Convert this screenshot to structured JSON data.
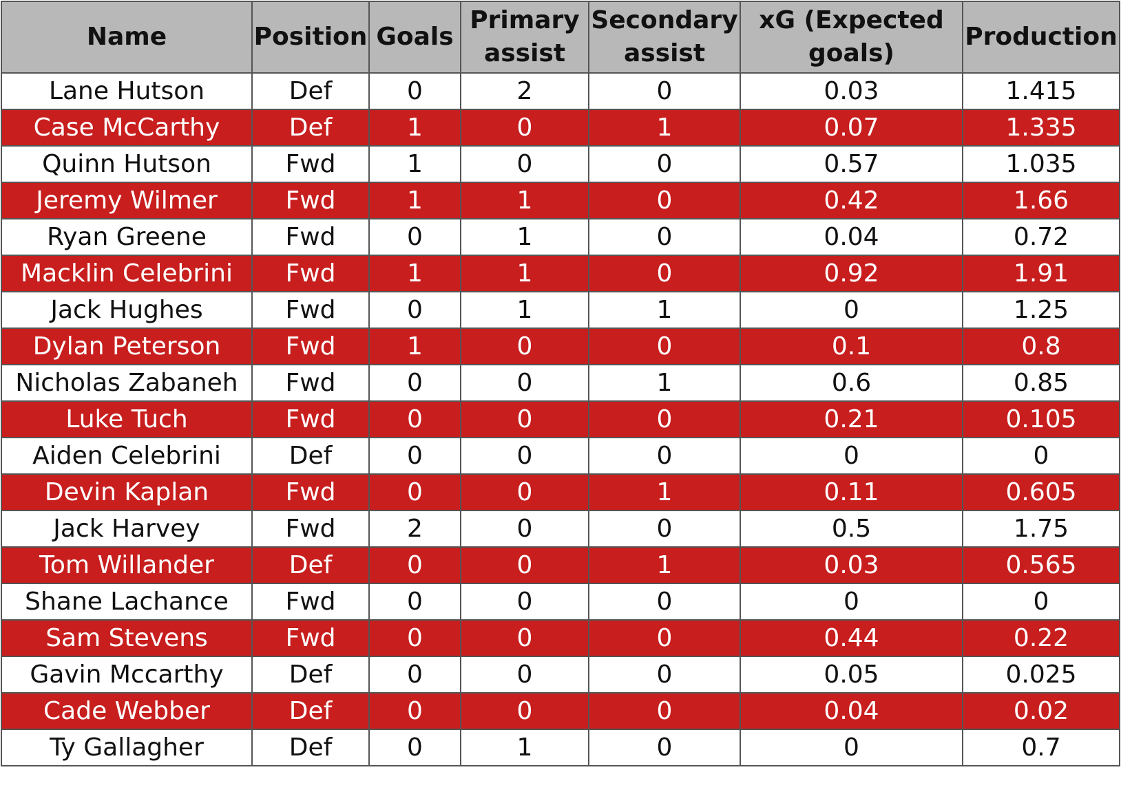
{
  "table": {
    "columns": [
      "Name",
      "Position",
      "Goals",
      "Primary assist",
      "Secondary assist",
      "xG (Expected goals)",
      "Production"
    ],
    "row_colors": {
      "light": "#ffffff",
      "accent": "#c81e1e",
      "header": "#b8b8b8"
    },
    "rows": [
      [
        "Lane Hutson",
        "Def",
        "0",
        "2",
        "0",
        "0.03",
        "1.415"
      ],
      [
        "Case McCarthy",
        "Def",
        "1",
        "0",
        "1",
        "0.07",
        "1.335"
      ],
      [
        "Quinn Hutson",
        "Fwd",
        "1",
        "0",
        "0",
        "0.57",
        "1.035"
      ],
      [
        "Jeremy Wilmer",
        "Fwd",
        "1",
        "1",
        "0",
        "0.42",
        "1.66"
      ],
      [
        "Ryan Greene",
        "Fwd",
        "0",
        "1",
        "0",
        "0.04",
        "0.72"
      ],
      [
        "Macklin Celebrini",
        "Fwd",
        "1",
        "1",
        "0",
        "0.92",
        "1.91"
      ],
      [
        "Jack Hughes",
        "Fwd",
        "0",
        "1",
        "1",
        "0",
        "1.25"
      ],
      [
        "Dylan Peterson",
        "Fwd",
        "1",
        "0",
        "0",
        "0.1",
        "0.8"
      ],
      [
        "Nicholas Zabaneh",
        "Fwd",
        "0",
        "0",
        "1",
        "0.6",
        "0.85"
      ],
      [
        "Luke Tuch",
        "Fwd",
        "0",
        "0",
        "0",
        "0.21",
        "0.105"
      ],
      [
        "Aiden Celebrini",
        "Def",
        "0",
        "0",
        "0",
        "0",
        "0"
      ],
      [
        "Devin Kaplan",
        "Fwd",
        "0",
        "0",
        "1",
        "0.11",
        "0.605"
      ],
      [
        "Jack Harvey",
        "Fwd",
        "2",
        "0",
        "0",
        "0.5",
        "1.75"
      ],
      [
        "Tom Willander",
        "Def",
        "0",
        "0",
        "1",
        "0.03",
        "0.565"
      ],
      [
        "Shane Lachance",
        "Fwd",
        "0",
        "0",
        "0",
        "0",
        "0"
      ],
      [
        "Sam Stevens",
        "Fwd",
        "0",
        "0",
        "0",
        "0.44",
        "0.22"
      ],
      [
        "Gavin Mccarthy",
        "Def",
        "0",
        "0",
        "0",
        "0.05",
        "0.025"
      ],
      [
        "Cade Webber",
        "Def",
        "0",
        "0",
        "0",
        "0.04",
        "0.02"
      ],
      [
        "Ty Gallagher",
        "Def",
        "0",
        "1",
        "0",
        "0",
        "0.7"
      ]
    ]
  }
}
